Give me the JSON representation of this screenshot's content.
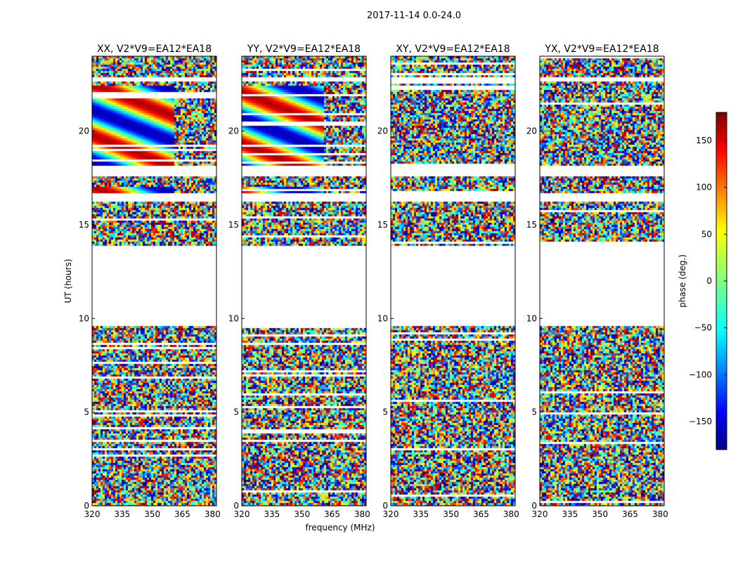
{
  "chart_data": {
    "type": "heatmap",
    "title": "2017-11-14 0.0-24.0",
    "xlabel": "frequency (MHz)",
    "ylabel": "UT (hours)",
    "xlim": [
      320,
      382
    ],
    "ylim": [
      0,
      24
    ],
    "x_ticks": [
      "320",
      "335",
      "350",
      "365",
      "380"
    ],
    "y_ticks": [
      "0",
      "5",
      "10",
      "15",
      "20"
    ],
    "panels": [
      {
        "title": "XX, V2*V9=EA12*EA18"
      },
      {
        "title": "YY, V2*V9=EA12*EA18"
      },
      {
        "title": "XY, V2*V9=EA12*EA18"
      },
      {
        "title": "YX, V2*V9=EA12*EA18"
      }
    ],
    "colorbar": {
      "label": "phase (deg.)",
      "range": [
        -180,
        180
      ],
      "ticks": [
        "150",
        "100",
        "50",
        "0",
        "−50",
        "−100",
        "−150"
      ],
      "tick_values": [
        150,
        100,
        50,
        0,
        -50,
        -100,
        -150
      ]
    },
    "flagged_ranges_hours": [
      [
        9.7,
        13.9
      ],
      [
        17.7,
        18.2
      ],
      [
        16.3,
        16.7
      ],
      [
        22.7,
        22.9
      ]
    ]
  }
}
